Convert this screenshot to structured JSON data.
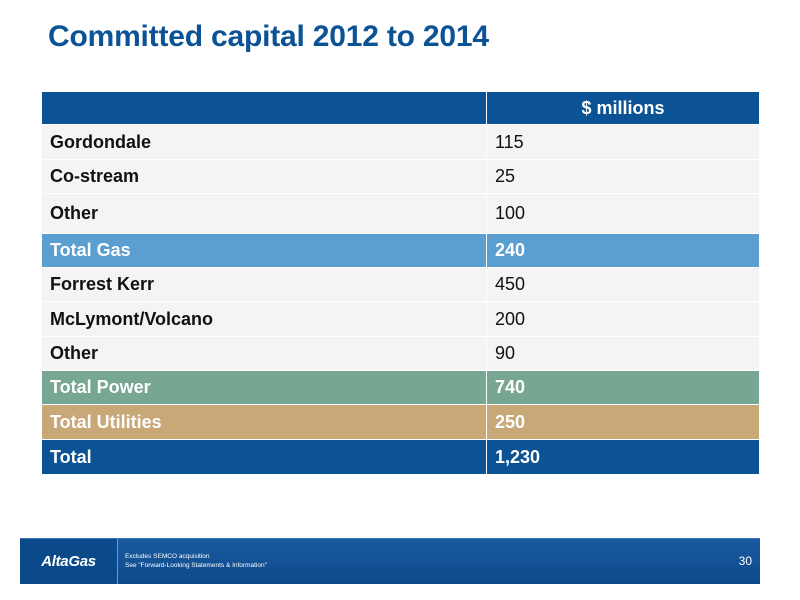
{
  "title": "Committed capital 2012 to 2014",
  "table": {
    "header": {
      "label": "",
      "value": "$ millions"
    },
    "rows": [
      {
        "label": "Gordondale",
        "value": "115",
        "kind": "item"
      },
      {
        "label": "Co-stream",
        "value": "25",
        "kind": "item"
      },
      {
        "label": "Other",
        "value": "100",
        "kind": "item"
      },
      {
        "label": "Total Gas",
        "value": "240",
        "kind": "subtotal-gas"
      },
      {
        "label": "Forrest Kerr",
        "value": "450",
        "kind": "item"
      },
      {
        "label": "McLymont/Volcano",
        "value": "200",
        "kind": "item"
      },
      {
        "label": "Other",
        "value": "90",
        "kind": "item"
      },
      {
        "label": "Total Power",
        "value": "740",
        "kind": "subtotal-power"
      },
      {
        "label": "Total Utilities",
        "value": "250",
        "kind": "subtotal-utilities"
      },
      {
        "label": "Total",
        "value": "1,230",
        "kind": "total"
      }
    ]
  },
  "colors": {
    "title": "#0b5394",
    "header": "#0b5394",
    "gas": "#5b9fd1",
    "power": "#77a792",
    "utilities": "#c9a877",
    "total": "#0b5394"
  },
  "footer": {
    "logo": "AltaGas",
    "note1": "Excludes SEMCO acquisition",
    "note2": "See \"Forward-Looking Statements & Information\"",
    "page_number": "30"
  }
}
